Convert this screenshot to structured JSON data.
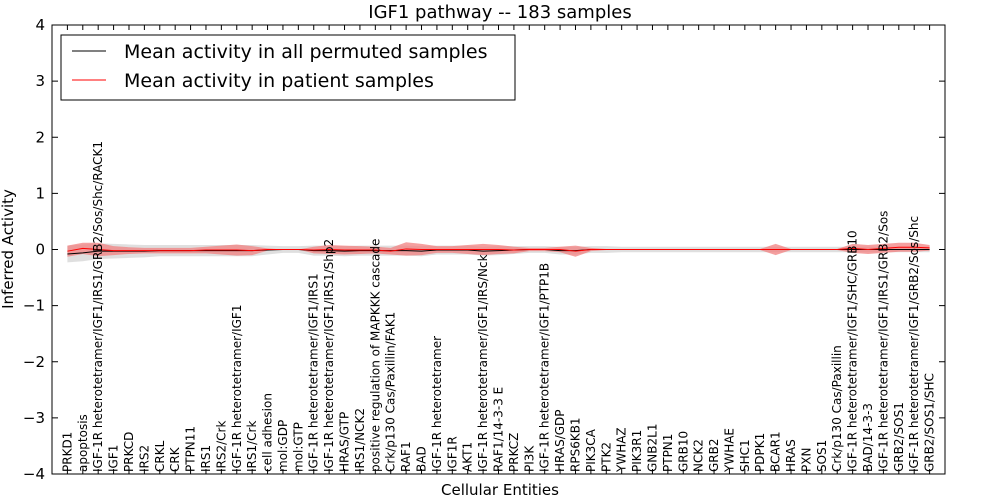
{
  "chart_data": {
    "type": "line",
    "title": "IGF1 pathway -- 183 samples",
    "xlabel": "Cellular Entities",
    "ylabel": "Inferred Activity",
    "ylim": [
      -4,
      4
    ],
    "yticks": [
      -4,
      -3,
      -2,
      -1,
      0,
      1,
      2,
      3,
      4
    ],
    "ytick_labels": [
      "−4",
      "−3",
      "−2",
      "−1",
      "0",
      "1",
      "2",
      "3",
      "4"
    ],
    "legend": {
      "position": "top-left",
      "entries": [
        {
          "label": "Mean activity in all permuted samples",
          "color": "#000000"
        },
        {
          "label": "Mean activity in patient samples",
          "color": "#ff0000"
        }
      ]
    },
    "colors": {
      "permuted_line": "#000000",
      "permuted_band": "#d9d9d9",
      "patient_line": "#ff0000",
      "patient_band": "#f28080"
    },
    "categories": [
      "PRKD1",
      "apoptosis",
      "IGF-1R heterotetramer/IGF1/IRS1/GRB2/Sos/Shc/RACK1",
      "IGF1",
      "PRKCD",
      "IRS2",
      "CRKL",
      "CRK",
      "PTPN11",
      "IRS1",
      "IRS2/Crk",
      "IGF-1R heterotetramer/IGF1",
      "IRS1/Crk",
      "cell adhesion",
      "mol:GDP",
      "mol:GTP",
      "IGF-1R heterotetramer/IGF1/IRS1",
      "IGF-1R heterotetramer/IGF1/IRS1/Shp2",
      "HRAS/GTP",
      "IRS1/NCK2",
      "positive regulation of MAPKKK cascade",
      "Crk/p130 Cas/Paxillin/FAK1",
      "RAF1",
      "BAD",
      "IGF-1R heterotetramer",
      "IGF1R",
      "AKT1",
      "IGF-1R heterotetramer/IGF1/IRS/Nck",
      "RAF1/14-3-3 E",
      "PRKCZ",
      "PI3K",
      "IGF-1R heterotetramer/IGF1/PTP1B",
      "HRAS/GDP",
      "RPS6KB1",
      "PIK3CA",
      "PTK2",
      "YWHAZ",
      "PIK3R1",
      "GNB2L1",
      "PTPN1",
      "GRB10",
      "NCK2",
      "GRB2",
      "YWHAE",
      "SHC1",
      "PDPK1",
      "BCAR1",
      "HRAS",
      "PXN",
      "SOS1",
      "Crk/p130 Cas/Paxillin",
      "IGF-1R heterotetramer/IGF1/SHC/GRB10",
      "BAD/14-3-3",
      "IGF-1R heterotetramer/IGF1/IRS1/GRB2/Sos",
      "GRB2/SOS1",
      "IGF-1R heterotetramer/IGF1/GRB2/Sos/Shc",
      "GRB2/SOS1/SHC"
    ],
    "series": [
      {
        "name": "Mean activity in all permuted samples",
        "values": [
          -0.08,
          -0.06,
          -0.03,
          -0.03,
          -0.03,
          -0.03,
          -0.02,
          -0.02,
          -0.02,
          -0.02,
          -0.02,
          -0.02,
          -0.02,
          -0.01,
          0.0,
          0.0,
          -0.02,
          -0.02,
          -0.03,
          -0.02,
          -0.02,
          -0.02,
          -0.02,
          -0.03,
          -0.01,
          -0.01,
          -0.01,
          -0.03,
          -0.02,
          -0.01,
          0.0,
          0.0,
          -0.02,
          -0.02,
          0.0,
          0.0,
          0.0,
          0.0,
          0.0,
          0.0,
          0.0,
          0.0,
          0.0,
          0.0,
          0.0,
          0.0,
          0.0,
          0.0,
          0.0,
          0.0,
          0.0,
          0.0,
          0.0,
          0.0,
          0.0,
          0.0,
          0.0
        ],
        "band": [
          0.15,
          0.15,
          0.14,
          0.13,
          0.12,
          0.11,
          0.1,
          0.1,
          0.1,
          0.1,
          0.1,
          0.1,
          0.1,
          0.08,
          0.06,
          0.06,
          0.09,
          0.09,
          0.09,
          0.09,
          0.09,
          0.09,
          0.09,
          0.09,
          0.08,
          0.08,
          0.08,
          0.08,
          0.08,
          0.07,
          0.06,
          0.06,
          0.07,
          0.07,
          0.06,
          0.06,
          0.05,
          0.05,
          0.05,
          0.05,
          0.05,
          0.05,
          0.05,
          0.05,
          0.05,
          0.05,
          0.05,
          0.05,
          0.05,
          0.05,
          0.05,
          0.05,
          0.05,
          0.05,
          0.05,
          0.05,
          0.05
        ]
      },
      {
        "name": "Mean activity in patient samples",
        "values": [
          -0.03,
          0.02,
          0.0,
          -0.02,
          -0.02,
          -0.02,
          -0.02,
          -0.02,
          -0.02,
          -0.01,
          -0.01,
          -0.01,
          -0.02,
          0.0,
          0.0,
          0.0,
          -0.01,
          0.0,
          -0.01,
          -0.01,
          -0.01,
          -0.03,
          0.01,
          0.0,
          0.0,
          0.0,
          0.0,
          0.0,
          0.0,
          -0.01,
          0.0,
          0.0,
          0.0,
          -0.03,
          0.0,
          0.0,
          0.0,
          0.0,
          0.0,
          0.0,
          0.0,
          0.0,
          0.0,
          0.0,
          0.0,
          0.0,
          0.0,
          0.0,
          0.0,
          0.0,
          0.0,
          0.02,
          0.0,
          0.02,
          0.04,
          0.04,
          0.03
        ],
        "band": [
          0.1,
          0.1,
          0.12,
          0.08,
          0.06,
          0.05,
          0.05,
          0.05,
          0.05,
          0.06,
          0.08,
          0.1,
          0.08,
          0.02,
          0.0,
          0.0,
          0.06,
          0.08,
          0.08,
          0.07,
          0.06,
          0.06,
          0.12,
          0.1,
          0.06,
          0.06,
          0.08,
          0.1,
          0.08,
          0.06,
          0.03,
          0.03,
          0.05,
          0.1,
          0.03,
          0.01,
          0.01,
          0.01,
          0.01,
          0.01,
          0.01,
          0.01,
          0.01,
          0.01,
          0.01,
          0.01,
          0.1,
          0.01,
          0.01,
          0.01,
          0.01,
          0.08,
          0.08,
          0.08,
          0.08,
          0.08,
          0.05
        ]
      }
    ]
  }
}
